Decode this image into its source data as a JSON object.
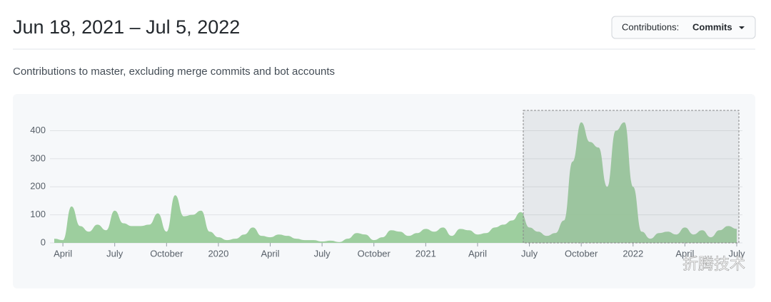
{
  "header": {
    "title": "Jun 18, 2021 – Jul 5, 2022",
    "button_label": "Contributions:",
    "button_value": "Commits"
  },
  "subtitle": "Contributions to master, excluding merge commits and bot accounts",
  "watermark": "折腾技术",
  "chart_data": {
    "type": "area",
    "color": "#94c993",
    "categories": [
      null,
      "April",
      null,
      null,
      null,
      null,
      null,
      "July",
      null,
      null,
      null,
      null,
      null,
      "October",
      null,
      null,
      null,
      null,
      null,
      "2020",
      null,
      null,
      null,
      null,
      null,
      "April",
      null,
      null,
      null,
      null,
      null,
      "July",
      null,
      null,
      null,
      null,
      null,
      "October",
      null,
      null,
      null,
      null,
      null,
      "2021",
      null,
      null,
      null,
      null,
      null,
      "April",
      null,
      null,
      null,
      null,
      null,
      "July",
      null,
      null,
      null,
      null,
      null,
      "October",
      null,
      null,
      null,
      null,
      null,
      "2022",
      null,
      null,
      null,
      null,
      null,
      "April",
      null,
      null,
      null,
      null,
      null,
      "July"
    ],
    "values": [
      15,
      10,
      130,
      60,
      40,
      65,
      45,
      115,
      70,
      60,
      60,
      65,
      105,
      40,
      170,
      95,
      100,
      115,
      40,
      20,
      10,
      15,
      30,
      55,
      25,
      20,
      30,
      25,
      15,
      10,
      10,
      5,
      8,
      3,
      15,
      35,
      30,
      10,
      20,
      45,
      40,
      25,
      35,
      50,
      40,
      55,
      25,
      50,
      45,
      30,
      35,
      55,
      65,
      80,
      110,
      55,
      40,
      25,
      35,
      80,
      290,
      430,
      360,
      340,
      200,
      400,
      430,
      200,
      40,
      15,
      35,
      40,
      30,
      55,
      30,
      45,
      20,
      45,
      60,
      50
    ],
    "ylim": [
      0,
      470
    ],
    "yticks": [
      0,
      100,
      200,
      300,
      400
    ],
    "grid": true
  }
}
